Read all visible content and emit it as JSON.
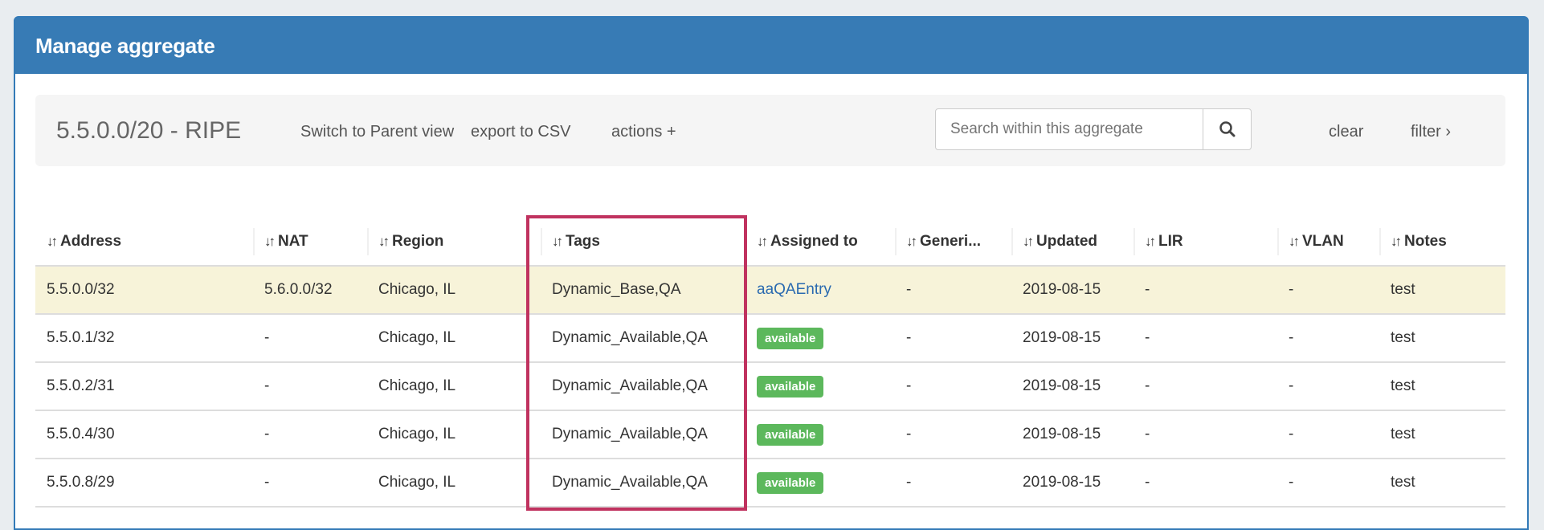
{
  "panel": {
    "title": "Manage aggregate"
  },
  "toolbar": {
    "breadcrumb": "5.5.0.0/20 - RIPE",
    "switch_parent": "Switch to Parent view",
    "export_csv": "export to CSV",
    "actions": "actions +",
    "search_placeholder": "Search within this aggregate",
    "clear": "clear",
    "filter": "filter ›"
  },
  "table": {
    "sort_glyph": "↓↑",
    "headers": [
      "Address",
      "NAT",
      "Region",
      "Tags",
      "Assigned to",
      "Generi...",
      "Updated",
      "LIR",
      "VLAN",
      "Notes"
    ],
    "rows": [
      {
        "address": "5.5.0.0/32",
        "nat": "5.6.0.0/32",
        "region": "Chicago, IL",
        "tags": "Dynamic_Base,QA",
        "assigned": "aaQAEntry",
        "generic": "-",
        "updated": "2019-08-15",
        "lir": "-",
        "vlan": "-",
        "notes": "test"
      },
      {
        "address": "5.5.0.1/32",
        "nat": "-",
        "region": "Chicago, IL",
        "tags": "Dynamic_Available,QA",
        "assigned": "available",
        "generic": "-",
        "updated": "2019-08-15",
        "lir": "-",
        "vlan": "-",
        "notes": "test"
      },
      {
        "address": "5.5.0.2/31",
        "nat": "-",
        "region": "Chicago, IL",
        "tags": "Dynamic_Available,QA",
        "assigned": "available",
        "generic": "-",
        "updated": "2019-08-15",
        "lir": "-",
        "vlan": "-",
        "notes": "test"
      },
      {
        "address": "5.5.0.4/30",
        "nat": "-",
        "region": "Chicago, IL",
        "tags": "Dynamic_Available,QA",
        "assigned": "available",
        "generic": "-",
        "updated": "2019-08-15",
        "lir": "-",
        "vlan": "-",
        "notes": "test"
      },
      {
        "address": "5.5.0.8/29",
        "nat": "-",
        "region": "Chicago, IL",
        "tags": "Dynamic_Available,QA",
        "assigned": "available",
        "generic": "-",
        "updated": "2019-08-15",
        "lir": "-",
        "vlan": "-",
        "notes": "test"
      }
    ]
  },
  "colors": {
    "header": "#377bb5",
    "badge": "#5cb85c",
    "highlight_row": "#f7f3d9",
    "annotation_box": "#c0325f"
  }
}
